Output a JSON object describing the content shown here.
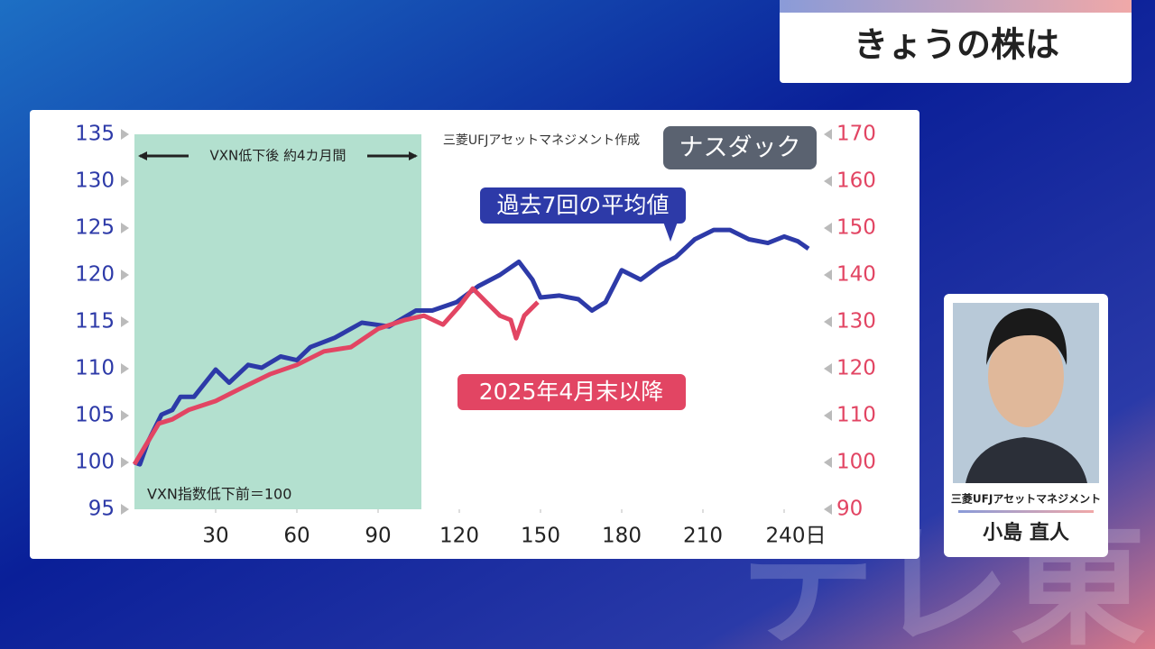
{
  "header": {
    "title": "きょうの株は"
  },
  "chart_data": {
    "type": "line",
    "title": "ナスダック",
    "source": "三菱UFJアセットマネジメント作成",
    "note": "VXN指数低下前＝100",
    "highlight": {
      "xlim": [
        0,
        106
      ],
      "label": "VXN低下後 約4カ月間",
      "color": "#b3e0cf"
    },
    "xlim": [
      0,
      250
    ],
    "xticks": [
      30,
      60,
      90,
      120,
      150,
      180,
      210,
      {
        "value": 240,
        "label": "240日"
      }
    ],
    "ylim": [
      95,
      135
    ],
    "yticks": [
      95,
      100,
      105,
      110,
      115,
      120,
      125,
      130,
      135
    ],
    "y2lim": [
      90,
      170
    ],
    "y2ticks": [
      90,
      100,
      110,
      120,
      130,
      140,
      150,
      160,
      170
    ],
    "series": [
      {
        "name": "過去7回の平均値",
        "color": "#2d3aa8",
        "axis": "y",
        "x": [
          0,
          2,
          5,
          10,
          14,
          17,
          22,
          30,
          35,
          42,
          47,
          54,
          60,
          65,
          74,
          84,
          94,
          104,
          110,
          119,
          127,
          135,
          142,
          147,
          150,
          157,
          164,
          169,
          174,
          180,
          187,
          194,
          200,
          207,
          214,
          220,
          227,
          234,
          240,
          245,
          249
        ],
        "values": [
          100,
          99.8,
          102.2,
          105.1,
          105.6,
          107,
          107,
          109.9,
          108.5,
          110.4,
          110.1,
          111.3,
          110.9,
          112.3,
          113.3,
          114.9,
          114.5,
          116.2,
          116.2,
          117.1,
          118.8,
          120,
          121.4,
          119.5,
          117.6,
          117.8,
          117.4,
          116.2,
          117.1,
          120.5,
          119.5,
          121,
          121.9,
          123.8,
          124.8,
          124.8,
          123.8,
          123.4,
          124.1,
          123.6,
          122.8
        ]
      },
      {
        "name": "2025年4月末以降",
        "color": "#e24563",
        "axis": "y2",
        "x": [
          0,
          4,
          9,
          14,
          20,
          30,
          40,
          50,
          60,
          70,
          80,
          90,
          100,
          107,
          114,
          120,
          125,
          130,
          135,
          139,
          141,
          144,
          149
        ],
        "values": [
          99.6,
          103.5,
          108.3,
          109.2,
          111.2,
          113.1,
          116,
          118.8,
          120.8,
          123.7,
          124.6,
          128.5,
          130.4,
          131.3,
          129.4,
          133.3,
          137.1,
          134.2,
          131.3,
          130.4,
          126.5,
          131.3,
          134.2
        ]
      }
    ]
  },
  "presenter": {
    "company": "三菱UFJアセットマネジメント",
    "name": "小島 直人"
  },
  "watermark": "テレ東"
}
